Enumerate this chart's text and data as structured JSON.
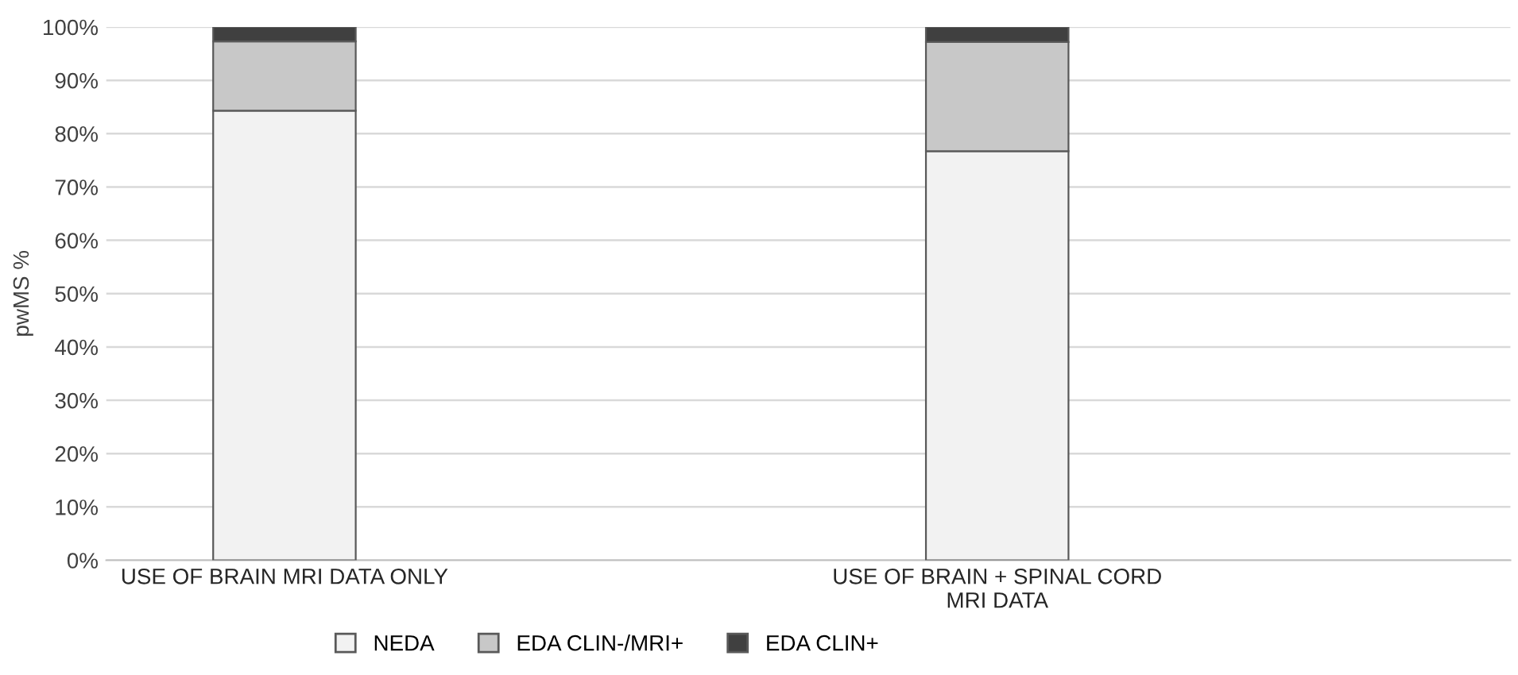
{
  "chart_data": {
    "type": "bar",
    "stacked": true,
    "ylabel": "pwMS %",
    "categories": [
      "USE OF BRAIN MRI DATA ONLY",
      "USE OF BRAIN + SPINAL CORD\nMRI DATA"
    ],
    "series": [
      {
        "name": "NEDA",
        "color": "#f2f2f2",
        "values": [
          84.3,
          76.7
        ]
      },
      {
        "name": "EDA CLIN-/MRI+",
        "color": "#c8c8c8",
        "values": [
          13.0,
          20.5
        ]
      },
      {
        "name": "EDA CLIN+",
        "color": "#404040",
        "values": [
          2.7,
          2.8
        ]
      }
    ],
    "ylim": [
      0,
      100
    ],
    "yticks": [
      {
        "value": 0,
        "label": "0%"
      },
      {
        "value": 10,
        "label": "10%"
      },
      {
        "value": 20,
        "label": "20%"
      },
      {
        "value": 30,
        "label": "30%"
      },
      {
        "value": 40,
        "label": "40%"
      },
      {
        "value": 50,
        "label": "50%"
      },
      {
        "value": 60,
        "label": "60%"
      },
      {
        "value": 70,
        "label": "70%"
      },
      {
        "value": 80,
        "label": "80%"
      },
      {
        "value": 90,
        "label": "90%"
      },
      {
        "value": 100,
        "label": "100%"
      }
    ],
    "grid": "y",
    "legend": "bottom"
  }
}
